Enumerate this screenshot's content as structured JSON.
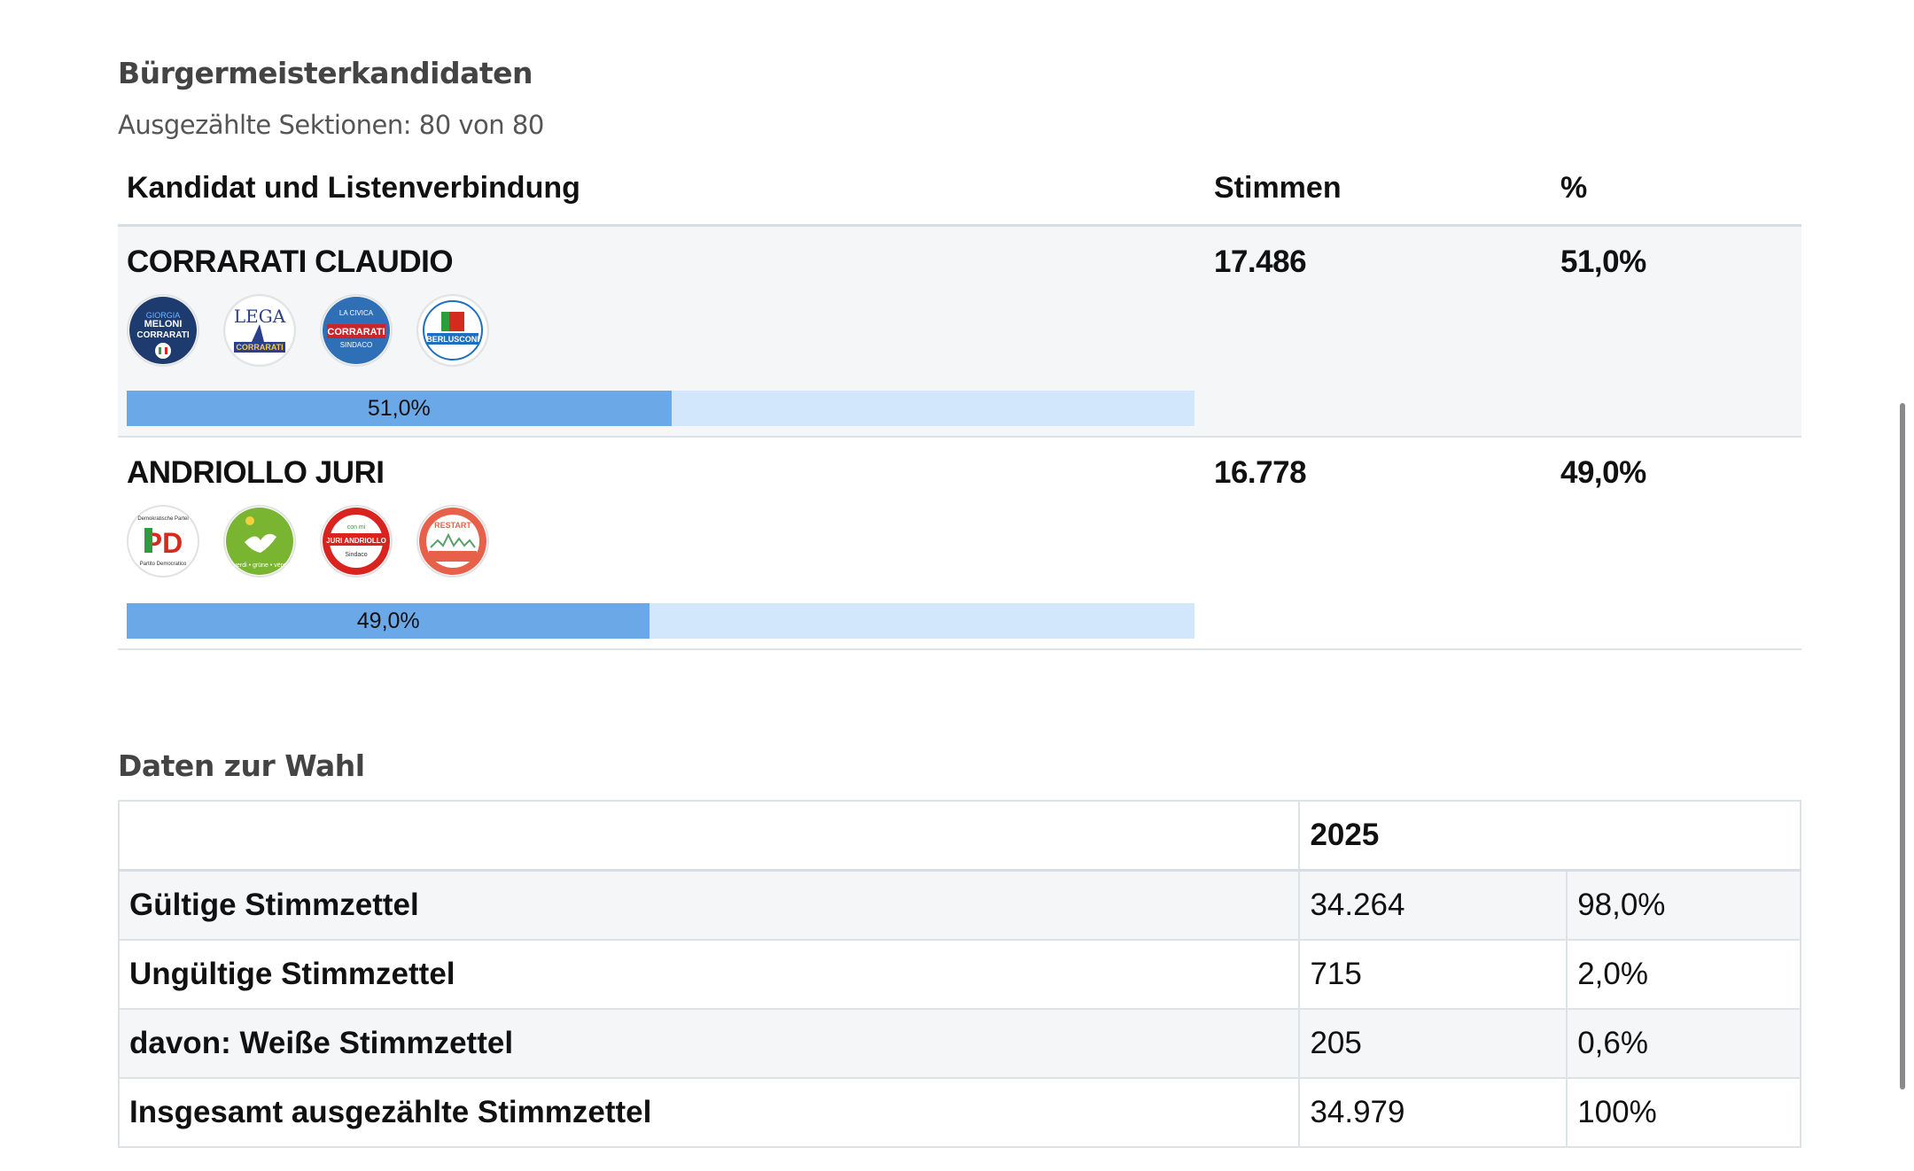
{
  "candidates_section": {
    "title": "Bürgermeisterkandidaten",
    "subtitle": "Ausgezählte Sektionen: 80 von 80",
    "columns": {
      "candidate": "Kandidat und Listenverbindung",
      "votes": "Stimmen",
      "percent": "%"
    },
    "candidates": [
      {
        "name": "CORRARATI CLAUDIO",
        "votes": "17.486",
        "percent": "51,0%",
        "bar_percent": 51.0,
        "bar_label": "51,0%",
        "lists": [
          {
            "icon": "fratelli-italia-logo",
            "text": "CORRARATI",
            "color": "#1d3b6e"
          },
          {
            "icon": "lega-logo",
            "text": "CORRARATI",
            "color": "#2a3f8f"
          },
          {
            "icon": "civica-bolzano-logo",
            "text": "CORRARATI",
            "color": "#c8262b"
          },
          {
            "icon": "forza-italia-logo",
            "text": "BERLUSCONI",
            "color": "#1e6fbf"
          }
        ]
      },
      {
        "name": "ANDRIOLLO JURI",
        "votes": "16.778",
        "percent": "49,0%",
        "bar_percent": 49.0,
        "bar_label": "49,0%",
        "lists": [
          {
            "icon": "partito-democratico-logo",
            "text": "PD",
            "color": "#d52b1e"
          },
          {
            "icon": "verdi-gruene-logo",
            "text": "",
            "color": "#7ab532"
          },
          {
            "icon": "lista-civica-andriollo-logo",
            "text": "JURI ANDRIOLLO",
            "color": "#d9231f"
          },
          {
            "icon": "restart-bolzano-logo",
            "text": "RESTART",
            "color": "#e7604a"
          }
        ]
      }
    ]
  },
  "election_data": {
    "title": "Daten zur Wahl",
    "year": "2025",
    "rows": [
      {
        "label": "Gültige Stimmzettel",
        "value": "34.264",
        "percent": "98,0%"
      },
      {
        "label": "Ungültige Stimmzettel",
        "value": "715",
        "percent": "2,0%"
      },
      {
        "label": "davon: Weiße Stimmzettel",
        "value": "205",
        "percent": "0,6%"
      },
      {
        "label": "Insgesamt ausgezählte Stimmzettel",
        "value": "34.979",
        "percent": "100%"
      }
    ]
  },
  "colors": {
    "bar_fill": "#6ba8e8",
    "bar_track": "#d3e7fc",
    "row_alt": "#f4f6f8"
  }
}
